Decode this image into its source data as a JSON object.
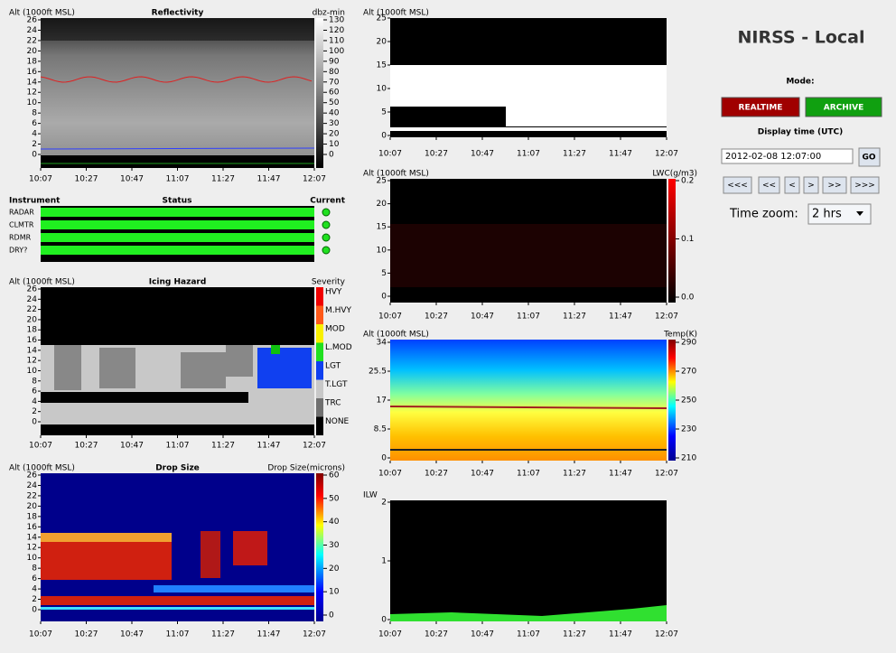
{
  "header": {
    "title": "NIRSS - Local",
    "mode_label": "Mode:",
    "realtime": "REALTIME",
    "archive": "ARCHIVE",
    "display_time_label": "Display time (UTC)",
    "display_time": "2012-02-08 12:07:00",
    "go": "GO",
    "nav": [
      "<<<",
      "<<",
      "<",
      ">",
      ">>",
      ">>>"
    ],
    "time_zoom_label": "Time zoom:",
    "time_zoom": "2 hrs"
  },
  "time_ticks": [
    "10:07",
    "10:27",
    "10:47",
    "11:07",
    "11:27",
    "11:47",
    "12:07"
  ],
  "status": {
    "headers": [
      "Instrument",
      "Status",
      "Current"
    ],
    "instruments": [
      "RADAR",
      "CLMTR",
      "RDMR",
      "DRY?"
    ]
  },
  "panels": {
    "reflectivity": {
      "title": "Reflectivity",
      "y_label": "Alt (1000ft MSL)",
      "scale_label": "dbz-min",
      "y_ticks": [
        0,
        2,
        4,
        6,
        8,
        10,
        12,
        14,
        16,
        18,
        20,
        22,
        24,
        26
      ],
      "scale_ticks": [
        0,
        10,
        20,
        30,
        40,
        50,
        60,
        70,
        80,
        90,
        100,
        110,
        120,
        130
      ]
    },
    "icing": {
      "title": "Icing Hazard",
      "y_label": "Alt (1000ft MSL)",
      "scale_label": "Severity",
      "y_ticks": [
        0,
        2,
        4,
        6,
        8,
        10,
        12,
        14,
        16,
        18,
        20,
        22,
        24,
        26
      ],
      "severity": [
        "HVY",
        "M.HVY",
        "MOD",
        "L.MOD",
        "LGT",
        "T.LGT",
        "TRC",
        "NONE"
      ]
    },
    "drop": {
      "title": "Drop Size",
      "y_label": "Alt (1000ft MSL)",
      "scale_label": "Drop Size(microns)",
      "y_ticks": [
        0,
        2,
        4,
        6,
        8,
        10,
        12,
        14,
        16,
        18,
        20,
        22,
        24,
        26
      ],
      "scale_ticks": [
        0,
        10,
        20,
        30,
        40,
        50,
        60
      ]
    },
    "alt": {
      "y_label": "Alt (1000ft MSL)",
      "y_ticks": [
        0,
        5,
        10,
        15,
        20,
        25
      ]
    },
    "lwc": {
      "y_label": "Alt (1000ft MSL)",
      "scale_label": "LWC(g/m3)",
      "y_ticks": [
        0,
        5,
        10,
        15,
        20,
        25
      ],
      "scale_ticks": [
        "0.0",
        "0.1",
        "0.2"
      ]
    },
    "temp": {
      "y_label": "Alt (1000ft MSL)",
      "scale_label": "Temp(K)",
      "y_ticks": [
        0,
        8.5,
        17,
        25.5,
        34
      ],
      "scale_ticks": [
        210,
        230,
        250,
        270,
        290
      ]
    },
    "ilw": {
      "y_label": "ILW",
      "y_ticks": [
        0,
        1,
        2
      ]
    }
  }
}
